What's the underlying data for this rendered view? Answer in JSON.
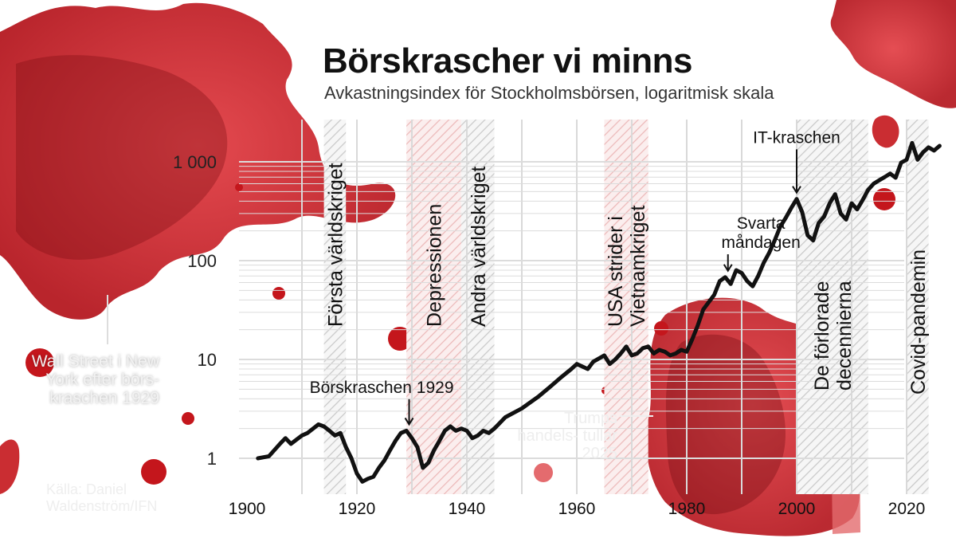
{
  "title": "Börskrascher vi minns",
  "subtitle": "Avkastningsindex för Stockholmsbörsen, logaritmisk skala",
  "photo_caption": "Wall Street i New York efter börs- kraschen 1929",
  "tariff_caption": "Trumps handels- tullar 2025",
  "source": "Källa: Daniel Waldenström/IFN",
  "colors": {
    "line": "#111111",
    "blood_red": "#c4161c",
    "grid": "#dddddd",
    "band_hatch": "#bdbdbd",
    "band_hatch_red": "#e7a9a9"
  },
  "chart_data": {
    "type": "line",
    "title": "Börskrascher vi minns",
    "subtitle": "Avkastningsindex för Stockholmsbörsen, logaritmisk skala",
    "xlabel": "",
    "ylabel": "",
    "y_scale": "log",
    "xlim": [
      1900,
      2026
    ],
    "ylim": [
      0.55,
      1800
    ],
    "x_ticks": [
      1900,
      1920,
      1940,
      1960,
      1980,
      2000,
      2020
    ],
    "x_tick_labels": [
      "1900",
      "1920",
      "1940",
      "1960",
      "1980",
      "2000",
      "2020"
    ],
    "y_ticks": [
      1,
      10,
      100,
      1000
    ],
    "y_tick_labels": [
      "1",
      "10",
      "100",
      "1 000"
    ],
    "grid": true,
    "series": [
      {
        "values": [
          [
            1902,
            1.0
          ],
          [
            1904,
            1.05
          ],
          [
            1906,
            1.4
          ],
          [
            1907,
            1.6
          ],
          [
            1908,
            1.4
          ],
          [
            1910,
            1.7
          ],
          [
            1911,
            1.8
          ],
          [
            1913,
            2.2
          ],
          [
            1914,
            2.1
          ],
          [
            1915,
            1.9
          ],
          [
            1916,
            1.7
          ],
          [
            1917,
            1.8
          ],
          [
            1918,
            1.3
          ],
          [
            1919,
            1.0
          ],
          [
            1920,
            0.7
          ],
          [
            1921,
            0.58
          ],
          [
            1922,
            0.62
          ],
          [
            1923,
            0.65
          ],
          [
            1924,
            0.8
          ],
          [
            1925,
            0.95
          ],
          [
            1926,
            1.2
          ],
          [
            1927,
            1.5
          ],
          [
            1928,
            1.8
          ],
          [
            1929,
            1.9
          ],
          [
            1930,
            1.6
          ],
          [
            1931,
            1.3
          ],
          [
            1932,
            0.8
          ],
          [
            1933,
            0.9
          ],
          [
            1934,
            1.2
          ],
          [
            1935,
            1.5
          ],
          [
            1936,
            1.9
          ],
          [
            1937,
            2.1
          ],
          [
            1938,
            1.9
          ],
          [
            1939,
            2.0
          ],
          [
            1940,
            1.9
          ],
          [
            1941,
            1.6
          ],
          [
            1942,
            1.7
          ],
          [
            1943,
            1.9
          ],
          [
            1944,
            1.8
          ],
          [
            1945,
            2.0
          ],
          [
            1947,
            2.6
          ],
          [
            1950,
            3.2
          ],
          [
            1953,
            4.2
          ],
          [
            1955,
            5.2
          ],
          [
            1957,
            6.5
          ],
          [
            1959,
            8.0
          ],
          [
            1960,
            9.0
          ],
          [
            1962,
            8.0
          ],
          [
            1963,
            9.5
          ],
          [
            1965,
            11.0
          ],
          [
            1966,
            9.0
          ],
          [
            1967,
            10.0
          ],
          [
            1968,
            11.5
          ],
          [
            1969,
            13.5
          ],
          [
            1970,
            11.0
          ],
          [
            1971,
            11.5
          ],
          [
            1972,
            13.0
          ],
          [
            1973,
            13.5
          ],
          [
            1974,
            11.5
          ],
          [
            1975,
            12.5
          ],
          [
            1976,
            12.0
          ],
          [
            1977,
            11.0
          ],
          [
            1978,
            11.5
          ],
          [
            1979,
            12.5
          ],
          [
            1980,
            12.0
          ],
          [
            1981,
            16.0
          ],
          [
            1982,
            22.0
          ],
          [
            1983,
            32.0
          ],
          [
            1984,
            38.0
          ],
          [
            1985,
            45.0
          ],
          [
            1986,
            62.0
          ],
          [
            1987,
            68.0
          ],
          [
            1988,
            58.0
          ],
          [
            1989,
            80.0
          ],
          [
            1990,
            75.0
          ],
          [
            1991,
            62.0
          ],
          [
            1992,
            55.0
          ],
          [
            1993,
            70.0
          ],
          [
            1994,
            95.0
          ],
          [
            1995,
            120.0
          ],
          [
            1996,
            160.0
          ],
          [
            1997,
            220.0
          ],
          [
            1998,
            270.0
          ],
          [
            1999,
            340.0
          ],
          [
            2000,
            420.0
          ],
          [
            2001,
            310.0
          ],
          [
            2002,
            180.0
          ],
          [
            2003,
            160.0
          ],
          [
            2004,
            240.0
          ],
          [
            2005,
            280.0
          ],
          [
            2006,
            380.0
          ],
          [
            2007,
            470.0
          ],
          [
            2008,
            300.0
          ],
          [
            2009,
            260.0
          ],
          [
            2010,
            380.0
          ],
          [
            2011,
            330.0
          ],
          [
            2012,
            410.0
          ],
          [
            2013,
            520.0
          ],
          [
            2014,
            600.0
          ],
          [
            2015,
            650.0
          ],
          [
            2016,
            700.0
          ],
          [
            2017,
            760.0
          ],
          [
            2018,
            690.0
          ],
          [
            2019,
            980.0
          ],
          [
            2020,
            1050.0
          ],
          [
            2021,
            1550.0
          ],
          [
            2022,
            1050.0
          ],
          [
            2023,
            1250.0
          ],
          [
            2024,
            1400.0
          ],
          [
            2025,
            1300.0
          ],
          [
            2026,
            1450.0
          ]
        ]
      }
    ],
    "bands": [
      {
        "label": "Första världskriget",
        "start": 1914,
        "end": 1918,
        "tint": "grey"
      },
      {
        "label": "Depressionen",
        "start": 1929,
        "end": 1939,
        "tint": "red"
      },
      {
        "label": "Andra världskriget",
        "start": 1939,
        "end": 1945,
        "tint": "grey"
      },
      {
        "label": "USA strider i Vietnamkriget",
        "label_lines": [
          "USA strider i",
          "Vietnamkriget"
        ],
        "start": 1965,
        "end": 1973,
        "tint": "red"
      },
      {
        "label": "De förlorade decennierna",
        "label_lines": [
          "De förlorade",
          "decennierna"
        ],
        "start": 2000,
        "end": 2013,
        "tint": "grey"
      },
      {
        "label": "Covid-pandemin",
        "start": 2020,
        "end": 2024,
        "tint": "grey"
      }
    ],
    "annotations": [
      {
        "text": "Börskraschen 1929",
        "x": 1929.5,
        "y": 1.9,
        "label_x": 1924.5,
        "label_y": 4.6
      },
      {
        "text": "Svarta måndagen",
        "lines": [
          "Svarta",
          "måndagen"
        ],
        "x": 1987.5,
        "y": 68,
        "label_x": 1993.5,
        "label_y": 210
      },
      {
        "text": "IT-kraschen",
        "x": 2000,
        "y": 420,
        "label_x": 2000,
        "label_y": 1550
      }
    ]
  }
}
